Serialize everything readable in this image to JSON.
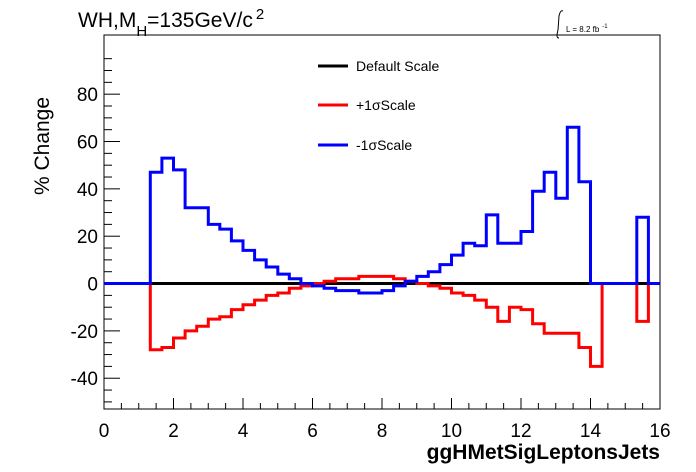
{
  "chart_data": {
    "type": "line",
    "title": "WH,M",
    "title_sub": "H",
    "title_rest": "=135GeV/c",
    "title_sup": "2",
    "lumi": {
      "label": "L = 8.2 fb",
      "sup": "-1"
    },
    "xlabel": "ggHMetSigLeptonsJets",
    "ylabel": "% Change",
    "xlim": [
      0,
      16
    ],
    "ylim": [
      -53,
      105
    ],
    "x_ticks": [
      0,
      2,
      4,
      6,
      8,
      10,
      12,
      14,
      16
    ],
    "y_ticks": [
      -40,
      -20,
      0,
      20,
      40,
      60,
      80
    ],
    "bin_edges": [
      0,
      0.333,
      0.667,
      1.0,
      1.333,
      1.667,
      2.0,
      2.333,
      2.667,
      3.0,
      3.333,
      3.667,
      4.0,
      4.333,
      4.667,
      5.0,
      5.333,
      5.667,
      6.0,
      6.333,
      6.667,
      7.0,
      7.333,
      7.667,
      8.0,
      8.333,
      8.667,
      9.0,
      9.333,
      9.667,
      10.0,
      10.333,
      10.667,
      11.0,
      11.333,
      11.667,
      12.0,
      12.333,
      12.667,
      13.0,
      13.333,
      13.667,
      14.0,
      14.333,
      14.667,
      15.0,
      15.333,
      15.667,
      16.0
    ],
    "series": [
      {
        "name": "Default Scale",
        "color": "#000000",
        "values": [
          0,
          0,
          0,
          0,
          0,
          0,
          0,
          0,
          0,
          0,
          0,
          0,
          0,
          0,
          0,
          0,
          0,
          0,
          0,
          0,
          0,
          0,
          0,
          0,
          0,
          0,
          0,
          0,
          0,
          0,
          0,
          0,
          0,
          0,
          0,
          0,
          0,
          0,
          0,
          0,
          0,
          0,
          0,
          0,
          0,
          0,
          0,
          0
        ]
      },
      {
        "name": "+1σScale",
        "color": "#ff0000",
        "values": [
          0,
          0,
          0,
          0,
          -28,
          -27,
          -23,
          -20,
          -18,
          -15,
          -14,
          -11,
          -9,
          -7,
          -5,
          -4,
          -2,
          -1,
          0,
          1,
          2,
          2,
          3,
          3,
          3,
          2,
          1,
          0,
          -1,
          -2,
          -4,
          -5,
          -7,
          -10,
          -16,
          -10,
          -11,
          -17,
          -21,
          -21,
          -21,
          -27,
          -35,
          0,
          0,
          0,
          -16,
          0
        ]
      },
      {
        "name": "-1σScale",
        "color": "#0000ff",
        "values": [
          0,
          0,
          0,
          0,
          47,
          53,
          48,
          32,
          32,
          25,
          23,
          18,
          14,
          10,
          7,
          4,
          2,
          0,
          -1,
          -2,
          -3,
          -3,
          -4,
          -4,
          -3,
          -1,
          1,
          3,
          5,
          8,
          12,
          17,
          16,
          29,
          17,
          17,
          22,
          39,
          47,
          36,
          66,
          43,
          0,
          0,
          0,
          0,
          28,
          0
        ]
      }
    ],
    "legend": {
      "placement": "top-center"
    },
    "grid": false
  }
}
